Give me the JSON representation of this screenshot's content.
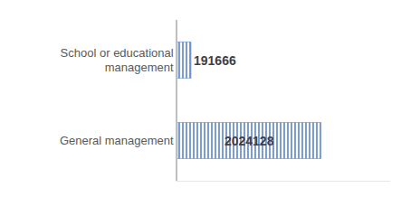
{
  "chart_data": {
    "type": "bar",
    "orientation": "horizontal",
    "categories": [
      "School or educational management",
      "General management"
    ],
    "values": [
      191666,
      2024128
    ],
    "color": "#7f9fd8",
    "xlim": [
      0,
      3000000
    ],
    "data_labels": true,
    "tick_labels": "y",
    "grid": false
  }
}
